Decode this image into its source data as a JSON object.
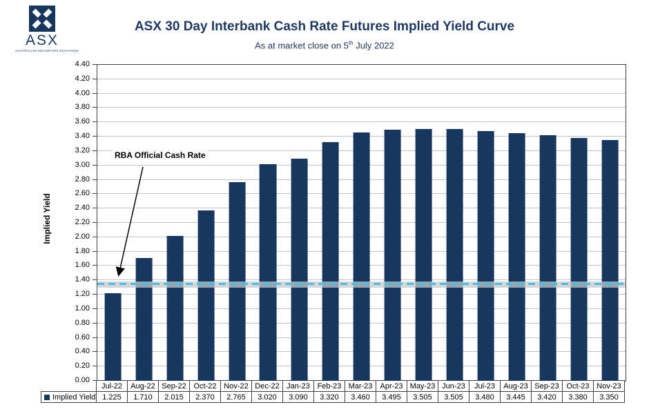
{
  "logo": {
    "text": "ASX",
    "tagline": "AUSTRALIAN SECURITIES EXCHANGE"
  },
  "header": {
    "title": "ASX 30 Day Interbank Cash Rate Futures Implied Yield Curve",
    "subtitle_pre": "As at market close on 5",
    "subtitle_sup": "th",
    "subtitle_post": " July 2022"
  },
  "chart_data": {
    "type": "bar",
    "title": "ASX 30 Day Interbank Cash Rate Futures Implied Yield Curve",
    "subtitle": "As at market close on 5th July 2022",
    "xlabel": "",
    "ylabel": "Implied Yield",
    "ylim": [
      0,
      4.4
    ],
    "ytick_step": 0.2,
    "grid": true,
    "legend_position": "bottom-left",
    "bar_color": "#17375E",
    "categories": [
      "Jul-22",
      "Aug-22",
      "Sep-22",
      "Oct-22",
      "Nov-22",
      "Dec-22",
      "Jan-23",
      "Feb-23",
      "Mar-23",
      "Apr-23",
      "May-23",
      "Jun-23",
      "Jul-23",
      "Aug-23",
      "Sep-23",
      "Oct-23",
      "Nov-23"
    ],
    "values": [
      1.225,
      1.71,
      2.015,
      2.37,
      2.765,
      3.02,
      3.09,
      3.32,
      3.46,
      3.495,
      3.505,
      3.505,
      3.48,
      3.445,
      3.42,
      3.38,
      3.35
    ],
    "legend_label": "Implied Yield",
    "reference_line": {
      "label": "RBA Official Cash Rate",
      "value": 1.345,
      "color": "#3EC1EC",
      "style": "dashed"
    }
  }
}
